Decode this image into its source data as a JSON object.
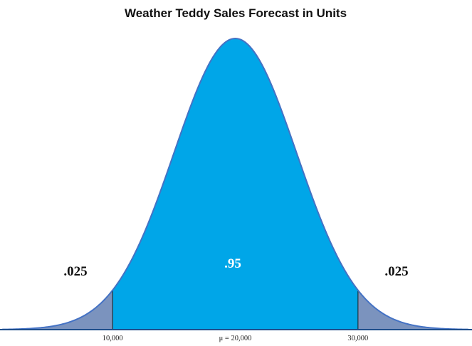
{
  "chart_data": {
    "type": "area",
    "title": "Weather Teddy Sales Forecast in Units",
    "distribution": "normal",
    "mean": 20000,
    "std_dev": 5000,
    "x_range": [
      1000,
      39000
    ],
    "regions": [
      {
        "from": 1000,
        "to": 10000,
        "probability_label": ".025",
        "color": "#7b93be"
      },
      {
        "from": 10000,
        "to": 30000,
        "probability_label": ".95",
        "color": "#00a6e8"
      },
      {
        "from": 30000,
        "to": 39000,
        "probability_label": ".025",
        "color": "#7b93be"
      }
    ],
    "tick_labels": [
      {
        "value": 10000,
        "label": "10,000"
      },
      {
        "value": 20000,
        "label": "μ = 20,000"
      },
      {
        "value": 30000,
        "label": "30,000"
      }
    ],
    "outline_color": "#4472c4",
    "baseline_color": "#1f4e8c",
    "label_colors": {
      "tail": "#111111",
      "center": "#ffffff"
    }
  }
}
